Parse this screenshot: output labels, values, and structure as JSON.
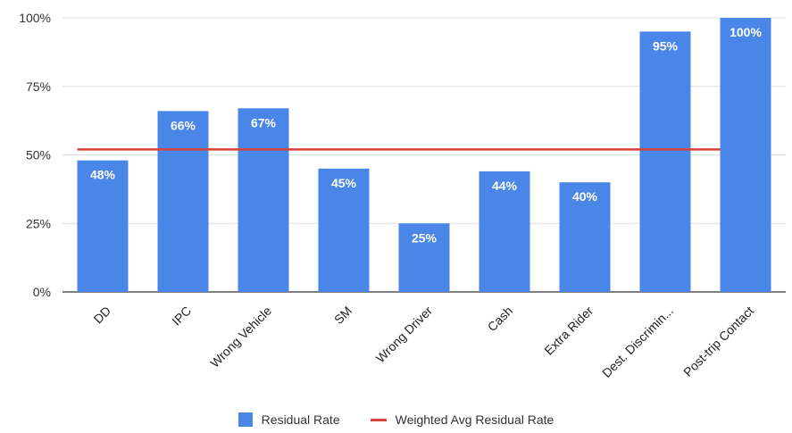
{
  "chart_data": {
    "type": "bar",
    "categories": [
      "DD",
      "IPC",
      "Wrong Vehicle",
      "SM",
      "Wrong Driver",
      "Cash",
      "Extra Rider",
      "Dest. Discrimin...",
      "Post-trip Contact"
    ],
    "series": [
      {
        "name": "Residual Rate",
        "type": "bar",
        "color": "#4a86e8",
        "values": [
          48,
          66,
          67,
          45,
          25,
          44,
          40,
          95,
          100
        ],
        "labels": [
          "48%",
          "66%",
          "67%",
          "45%",
          "25%",
          "44%",
          "40%",
          "95%",
          "100%"
        ]
      },
      {
        "name": "Weighted Avg Residual Rate",
        "type": "line",
        "color": "#d9423b",
        "values": [
          52,
          52,
          52,
          52,
          52,
          52,
          52,
          52,
          52
        ]
      }
    ],
    "y_ticks": [
      "0%",
      "25%",
      "50%",
      "75%",
      "100%"
    ],
    "y_tick_values": [
      0,
      25,
      50,
      75,
      100
    ],
    "ylim": [
      0,
      100
    ],
    "grid": true,
    "legend": "bottom"
  }
}
